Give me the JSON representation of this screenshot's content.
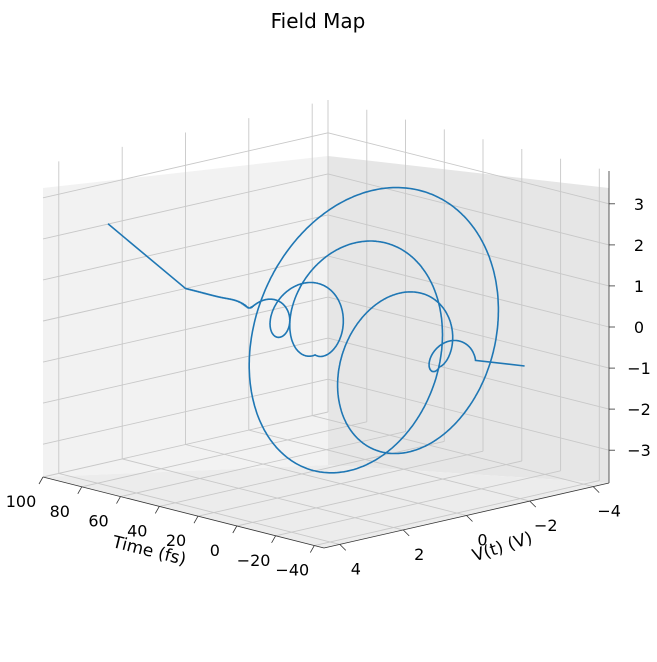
{
  "chart_data": {
    "type": "line",
    "projection": "3d",
    "title": "Field Map",
    "xlabel": "Time (fs)",
    "ylabel": "V(t) (V)",
    "zlabel": "",
    "xlim": [
      -45,
      100
    ],
    "ylim": [
      -4.5,
      4.5
    ],
    "zlim": [
      -3.8,
      3.8
    ],
    "xticks": [
      "100",
      "80",
      "60",
      "40",
      "20",
      "0",
      "−20",
      "−40"
    ],
    "xtick_values": [
      100,
      80,
      60,
      40,
      20,
      0,
      -20,
      -40
    ],
    "yticks": [
      "4",
      "2",
      "0",
      "−2",
      "−4"
    ],
    "ytick_values": [
      4,
      2,
      0,
      -2,
      -4
    ],
    "zticks": [
      "3",
      "2",
      "1",
      "0",
      "−1",
      "−2",
      "−3"
    ],
    "ztick_values": [
      3,
      2,
      1,
      0,
      -1,
      -2,
      -3
    ],
    "grid": true,
    "line_color": "#1f77b4",
    "series": [
      {
        "description": "spiral trajectory of the field vector over time",
        "t_range": [
          -45,
          100
        ],
        "x_is_time": true
      }
    ]
  }
}
